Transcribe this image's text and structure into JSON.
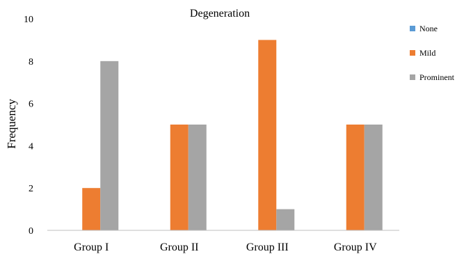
{
  "chart_data": {
    "type": "bar",
    "title": "Degeneration",
    "xlabel": "",
    "ylabel": "Frequency",
    "ylim": [
      0,
      10
    ],
    "yticks": [
      0,
      2,
      4,
      6,
      8,
      10
    ],
    "grid": false,
    "legend_position": "right",
    "categories": [
      "Group I",
      "Group II",
      "Group III",
      "Group IV"
    ],
    "series": [
      {
        "name": "None",
        "color": "#5b9bd5",
        "values": [
          0,
          0,
          0,
          0
        ]
      },
      {
        "name": "Mild",
        "color": "#ed7d31",
        "values": [
          2,
          5,
          9,
          5
        ]
      },
      {
        "name": "Prominent",
        "color": "#a5a5a5",
        "values": [
          8,
          5,
          1,
          5
        ]
      }
    ]
  }
}
